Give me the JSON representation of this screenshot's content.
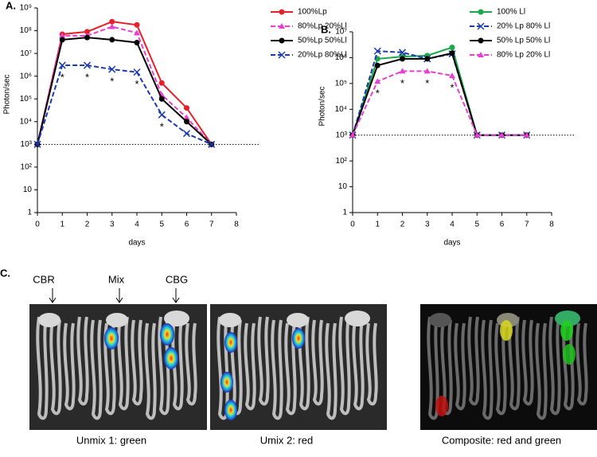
{
  "chart_data": [
    {
      "type": "line",
      "title": "A.",
      "x_label": "days",
      "y_label": "Photon/sec",
      "log_y": true,
      "legend": "upper right",
      "reference_line": 1000,
      "x": [
        0,
        1,
        2,
        3,
        4,
        5,
        6,
        7
      ],
      "xlim": [
        0,
        8
      ],
      "xticks": [
        0,
        1,
        2,
        3,
        4,
        5,
        6,
        7,
        8
      ],
      "ylim": [
        1,
        1000000000
      ],
      "yticks": [
        1,
        10,
        {
          "value": 100,
          "label": "10²"
        },
        {
          "value": 1000,
          "label": "10³"
        },
        {
          "value": 10000,
          "label": "10⁴"
        },
        {
          "value": 100000,
          "label": "10⁵"
        },
        {
          "value": 1000000,
          "label": "10⁶"
        },
        {
          "value": 10000000,
          "label": "10⁷"
        },
        {
          "value": 100000000,
          "label": "10⁸"
        },
        {
          "value": 1000000000,
          "label": "10⁹"
        }
      ],
      "series": [
        {
          "name": "100%Lp",
          "color": "#e8202a",
          "marker": "circle",
          "dashed": false,
          "values": [
            1000,
            70000000,
            90000000,
            250000000,
            180000000,
            500000,
            40000,
            1000
          ]
        },
        {
          "name": "80%Lp 20%Ll",
          "color": "#e83fd0",
          "marker": "triangle",
          "dashed": true,
          "values": [
            1000,
            60000000,
            60000000,
            150000000,
            80000000,
            150000,
            15000,
            1000
          ]
        },
        {
          "name": "50%Lp 50%Ll",
          "color": "#000000",
          "marker": "circle",
          "dashed": false,
          "values": [
            1000,
            40000000,
            50000000,
            40000000,
            30000000,
            100000,
            10000,
            1000
          ]
        },
        {
          "name": "20%Lp 80%Ll",
          "color": "#1a3ab0",
          "marker": "x",
          "dashed": true,
          "values": [
            1000,
            3000000,
            3000000,
            2000000,
            1500000,
            20000,
            3000,
            1000
          ]
        }
      ],
      "annotations": [
        {
          "x": 1,
          "text": "*"
        },
        {
          "x": 2,
          "text": "*"
        },
        {
          "x": 3,
          "text": "*"
        },
        {
          "x": 4,
          "text": "*"
        },
        {
          "x": 5,
          "text": "*"
        }
      ]
    },
    {
      "type": "line",
      "title": "B.",
      "x_label": "days",
      "y_label": "Photon/sec",
      "log_y": true,
      "legend": "upper right",
      "reference_line": 1000,
      "x": [
        0,
        1,
        2,
        3,
        4,
        5,
        6,
        7
      ],
      "xlim": [
        0,
        8
      ],
      "xticks": [
        0,
        1,
        2,
        3,
        4,
        5,
        6,
        7,
        8
      ],
      "ylim": [
        1,
        10000000
      ],
      "yticks": [
        1,
        10,
        {
          "value": 100,
          "label": "10²"
        },
        {
          "value": 1000,
          "label": "10³"
        },
        {
          "value": 10000,
          "label": "10⁴"
        },
        {
          "value": 100000,
          "label": "10⁵"
        },
        {
          "value": 1000000,
          "label": "10⁶"
        },
        {
          "value": 10000000,
          "label": "10⁷"
        }
      ],
      "series": [
        {
          "name": "100% Ll",
          "color": "#1aa84a",
          "marker": "circle",
          "dashed": false,
          "values": [
            1000,
            900000,
            1100000,
            1200000,
            2500000,
            1000,
            1000,
            1000
          ]
        },
        {
          "name": "20% Lp 80% Ll",
          "color": "#1a3ab0",
          "marker": "x",
          "dashed": true,
          "values": [
            1000,
            1800000,
            1600000,
            900000,
            1400000,
            1000,
            1000,
            1000
          ]
        },
        {
          "name": "50% Lp 50% Ll",
          "color": "#000000",
          "marker": "circle",
          "dashed": false,
          "values": [
            1000,
            500000,
            900000,
            900000,
            1500000,
            1000,
            1000,
            1000
          ]
        },
        {
          "name": "80% Lp 20% Ll",
          "color": "#e83fd0",
          "marker": "triangle",
          "dashed": true,
          "values": [
            1000,
            120000,
            300000,
            300000,
            200000,
            1000,
            1000,
            1000
          ]
        }
      ],
      "annotations": [
        {
          "x": 1,
          "text": "*"
        },
        {
          "x": 2,
          "text": "*"
        },
        {
          "x": 3,
          "text": "*"
        },
        {
          "x": 4,
          "text": "*"
        }
      ]
    }
  ],
  "panel_c": {
    "label": "C.",
    "markers": [
      "CBR",
      "Mix",
      "CBG"
    ],
    "captions": [
      "Unmix 1: green",
      "Umix 2: red",
      "Composite: red and green"
    ]
  }
}
